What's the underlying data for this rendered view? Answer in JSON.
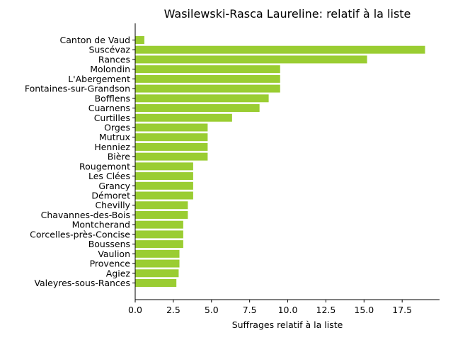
{
  "chart_data": {
    "type": "bar",
    "orientation": "horizontal",
    "title": "Wasilewski-Rasca Laureline: relatif à la liste",
    "xlabel": "Suffrages relatif à la liste",
    "ylabel": "",
    "bar_color": "#9acd32",
    "xlim": [
      0,
      19.95
    ],
    "xticks": [
      0.0,
      2.5,
      5.0,
      7.5,
      10.0,
      12.5,
      15.0,
      17.5
    ],
    "xtick_labels": [
      "0.0",
      "2.5",
      "5.0",
      "7.5",
      "10.0",
      "12.5",
      "15.0",
      "17.5"
    ],
    "grid": false,
    "categories": [
      "Canton de Vaud",
      "Suscévaz",
      "Rances",
      "Molondin",
      "L'Abergement",
      "Fontaines-sur-Grandson",
      "Bofflens",
      "Cuarnens",
      "Curtilles",
      "Orges",
      "Mutrux",
      "Henniez",
      "Bière",
      "Rougemont",
      "Les Clées",
      "Grancy",
      "Démoret",
      "Chevilly",
      "Chavannes-des-Bois",
      "Montcherand",
      "Corcelles-près-Concise",
      "Boussens",
      "Vaulion",
      "Provence",
      "Agiez",
      "Valeyres-sous-Rances"
    ],
    "values": [
      0.6,
      19.0,
      15.2,
      9.5,
      9.5,
      9.5,
      8.75,
      8.15,
      6.35,
      4.75,
      4.75,
      4.75,
      4.75,
      3.8,
      3.8,
      3.8,
      3.8,
      3.45,
      3.45,
      3.15,
      3.15,
      3.15,
      2.9,
      2.9,
      2.85,
      2.7
    ]
  }
}
